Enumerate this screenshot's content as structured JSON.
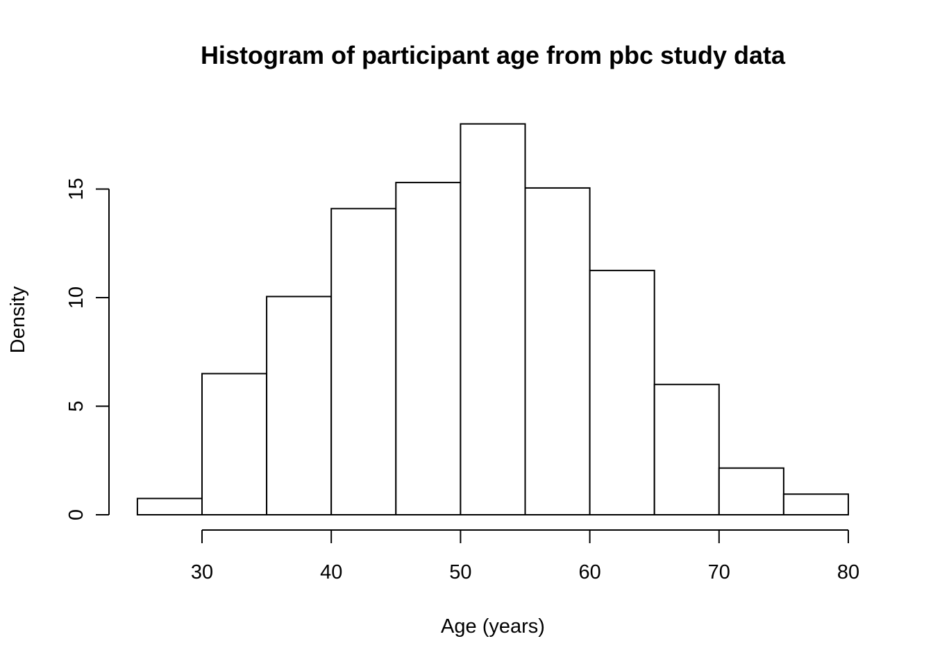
{
  "chart_data": {
    "type": "bar",
    "title": "Histogram of participant age from pbc study data",
    "xlabel": "Age (years)",
    "ylabel": "Density",
    "bins": [
      {
        "start": 25,
        "end": 30,
        "value": 0.75
      },
      {
        "start": 30,
        "end": 35,
        "value": 6.5
      },
      {
        "start": 35,
        "end": 40,
        "value": 10.05
      },
      {
        "start": 40,
        "end": 45,
        "value": 14.1
      },
      {
        "start": 45,
        "end": 50,
        "value": 15.3
      },
      {
        "start": 50,
        "end": 55,
        "value": 18.0
      },
      {
        "start": 55,
        "end": 60,
        "value": 15.05
      },
      {
        "start": 60,
        "end": 65,
        "value": 11.25
      },
      {
        "start": 65,
        "end": 70,
        "value": 6.0
      },
      {
        "start": 70,
        "end": 75,
        "value": 2.15
      },
      {
        "start": 75,
        "end": 80,
        "value": 0.95
      }
    ],
    "xticks": [
      "30",
      "40",
      "50",
      "60",
      "70",
      "80"
    ],
    "yticks": [
      "0",
      "5",
      "10",
      "15"
    ],
    "xlim": [
      25,
      80
    ],
    "ylim": [
      0,
      18
    ],
    "grid": false,
    "legend": "none"
  }
}
